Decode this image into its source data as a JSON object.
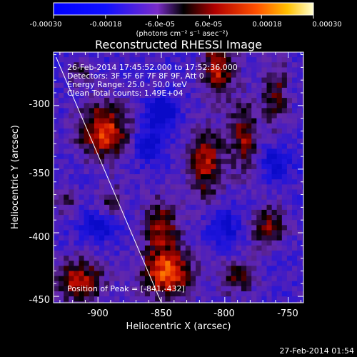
{
  "chart_data": {
    "type": "heatmap",
    "title": "Reconstructed RHESSI Image",
    "xlabel": "Heliocentric X (arcsec)",
    "ylabel": "Heliocentric Y (arcsec)",
    "xlim": [
      -935,
      -738
    ],
    "ylim": [
      -455,
      -258
    ],
    "xticks": [
      -900,
      -850,
      -800,
      -750
    ],
    "yticks": [
      -300,
      -350,
      -400,
      -450
    ],
    "xtick_labels": [
      "-900",
      "-850",
      "-800",
      "-750"
    ],
    "ytick_labels": [
      "-300",
      "-350",
      "-400",
      "-450"
    ],
    "colorbar": {
      "range": [
        -0.0003,
        0.0003
      ],
      "tick_values": [
        -0.0003,
        -0.00018,
        -6e-05,
        6e-05,
        0.00018,
        0.0003
      ],
      "tick_labels": [
        "-0.00030",
        "-0.00018",
        "-6.0e-05",
        "6.0e-05",
        "0.00018",
        "0.00030"
      ],
      "units": "(photons cm⁻² s⁻¹ asec⁻²)"
    },
    "annotations": [
      "26-Feb-2014 17:45:52.000 to 17:52:36.000",
      "Detectors: 3F 5F 6F 7F 8F 9F, Att 0",
      "Energy Range: 25.0 - 50.0 keV",
      "Clean    Total counts: 1.49E+04"
    ],
    "peak_label": "Position of Peak = [-841,-432]",
    "limb_line": {
      "from": [
        -933,
        -262
      ],
      "to": [
        -850,
        -455
      ]
    },
    "sources": [
      {
        "x": -895,
        "y": -320,
        "amp": 1.0,
        "sx": 14,
        "sy": 16
      },
      {
        "x": -845,
        "y": -432,
        "amp": 1.05,
        "sx": 14,
        "sy": 14
      },
      {
        "x": -915,
        "y": -438,
        "amp": 0.85,
        "sx": 14,
        "sy": 12
      },
      {
        "x": -805,
        "y": -270,
        "amp": 0.85,
        "sx": 9,
        "sy": 16
      },
      {
        "x": -815,
        "y": -345,
        "amp": 0.8,
        "sx": 10,
        "sy": 20
      },
      {
        "x": -850,
        "y": -395,
        "amp": 0.7,
        "sx": 10,
        "sy": 16
      },
      {
        "x": -785,
        "y": -325,
        "amp": 0.7,
        "sx": 8,
        "sy": 20
      },
      {
        "x": -760,
        "y": -290,
        "amp": 0.55,
        "sx": 8,
        "sy": 20
      },
      {
        "x": -765,
        "y": -395,
        "amp": 0.65,
        "sx": 10,
        "sy": 12
      },
      {
        "x": -790,
        "y": -435,
        "amp": 0.6,
        "sx": 10,
        "sy": 10
      },
      {
        "x": -890,
        "y": -375,
        "amp": 0.4,
        "sx": 8,
        "sy": 10
      },
      {
        "x": -925,
        "y": -375,
        "amp": 0.4,
        "sx": 6,
        "sy": 8
      },
      {
        "x": -915,
        "y": -275,
        "amp": 0.45,
        "sx": 7,
        "sy": 7
      },
      {
        "x": -860,
        "y": -330,
        "amp": -0.55,
        "sx": 9,
        "sy": 9
      },
      {
        "x": -850,
        "y": -305,
        "amp": -0.7,
        "sx": 8,
        "sy": 8
      },
      {
        "x": -900,
        "y": -395,
        "amp": -0.6,
        "sx": 9,
        "sy": 7
      },
      {
        "x": -800,
        "y": -395,
        "amp": -0.5,
        "sx": 8,
        "sy": 9
      },
      {
        "x": -760,
        "y": -345,
        "amp": -0.5,
        "sx": 8,
        "sy": 8
      }
    ],
    "grid": false
  },
  "footer": {
    "timestamp": "27-Feb-2014 01:54"
  }
}
